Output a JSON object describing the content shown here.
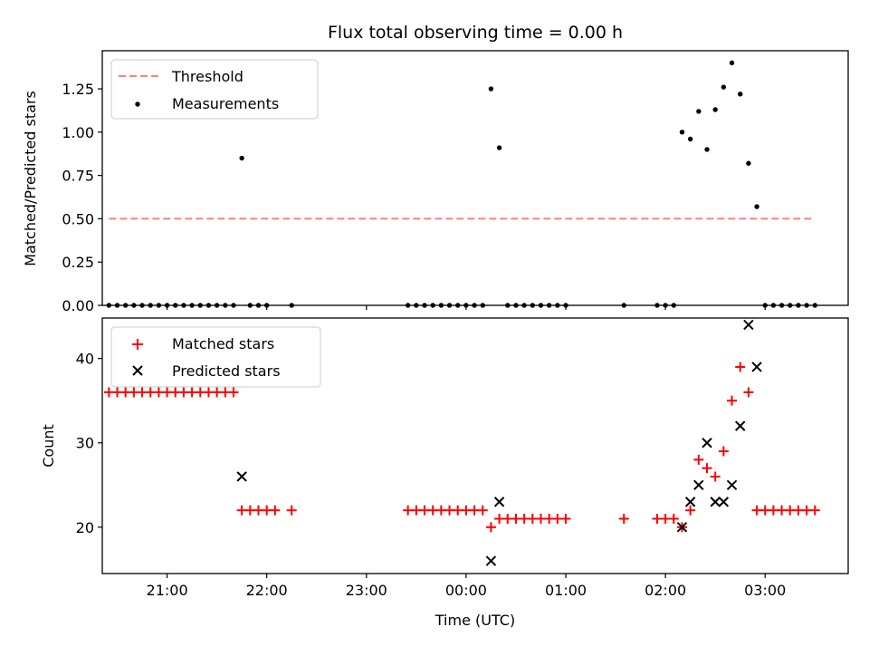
{
  "figure": {
    "title": "Flux total observing time = 0.00 h"
  },
  "chart_data": [
    {
      "type": "scatter",
      "panel": "top",
      "title": "Flux total observing time = 0.00 h",
      "xlabel": "",
      "ylabel": "Matched/Predicted stars",
      "xlim": [
        "20:21",
        "03:50"
      ],
      "ylim": [
        0,
        1.47
      ],
      "x_ticks": [
        "21:00",
        "22:00",
        "23:00",
        "00:00",
        "01:00",
        "02:00",
        "03:00"
      ],
      "x_ticklabels_shown": false,
      "y_ticks": [
        0.0,
        0.25,
        0.5,
        0.75,
        1.0,
        1.25
      ],
      "y_ticklabels": [
        "0.00",
        "0.25",
        "0.50",
        "0.75",
        "1.00",
        "1.25"
      ],
      "grid": false,
      "legend": "top-left",
      "threshold": {
        "name": "Threshold",
        "y": 0.5,
        "x_start": "20:25",
        "x_end": "03:30",
        "color": "#ff7f7f",
        "style": "dashed"
      },
      "series": [
        {
          "name": "Measurements",
          "marker": "dot",
          "color": "#000000",
          "points": [
            [
              "20:25",
              0
            ],
            [
              "20:30",
              0
            ],
            [
              "20:35",
              0
            ],
            [
              "20:40",
              0
            ],
            [
              "20:45",
              0
            ],
            [
              "20:50",
              0
            ],
            [
              "20:55",
              0
            ],
            [
              "21:00",
              0
            ],
            [
              "21:05",
              0
            ],
            [
              "21:10",
              0
            ],
            [
              "21:15",
              0
            ],
            [
              "21:20",
              0
            ],
            [
              "21:25",
              0
            ],
            [
              "21:30",
              0
            ],
            [
              "21:35",
              0
            ],
            [
              "21:40",
              0
            ],
            [
              "21:45",
              0.85
            ],
            [
              "21:50",
              0
            ],
            [
              "21:55",
              0
            ],
            [
              "22:00",
              0
            ],
            [
              "22:15",
              0
            ],
            [
              "23:25",
              0
            ],
            [
              "23:30",
              0
            ],
            [
              "23:35",
              0
            ],
            [
              "23:40",
              0
            ],
            [
              "23:45",
              0
            ],
            [
              "23:50",
              0
            ],
            [
              "23:55",
              0
            ],
            [
              "00:00",
              0
            ],
            [
              "00:05",
              0
            ],
            [
              "00:10",
              0
            ],
            [
              "00:15",
              1.25
            ],
            [
              "00:20",
              0.91
            ],
            [
              "00:25",
              0
            ],
            [
              "00:30",
              0
            ],
            [
              "00:35",
              0
            ],
            [
              "00:40",
              0
            ],
            [
              "00:45",
              0
            ],
            [
              "00:50",
              0
            ],
            [
              "00:55",
              0
            ],
            [
              "01:00",
              0
            ],
            [
              "01:35",
              0
            ],
            [
              "01:55",
              0
            ],
            [
              "02:00",
              0
            ],
            [
              "02:05",
              0
            ],
            [
              "02:10",
              1.0
            ],
            [
              "02:15",
              0.96
            ],
            [
              "02:20",
              1.12
            ],
            [
              "02:25",
              0.9
            ],
            [
              "02:30",
              1.13
            ],
            [
              "02:35",
              1.26
            ],
            [
              "02:40",
              1.4
            ],
            [
              "02:45",
              1.22
            ],
            [
              "02:50",
              0.82
            ],
            [
              "02:55",
              0.57
            ],
            [
              "03:00",
              0
            ],
            [
              "03:05",
              0
            ],
            [
              "03:10",
              0
            ],
            [
              "03:15",
              0
            ],
            [
              "03:20",
              0
            ],
            [
              "03:25",
              0
            ],
            [
              "03:30",
              0
            ]
          ]
        }
      ]
    },
    {
      "type": "scatter",
      "panel": "bottom",
      "title": "",
      "xlabel": "Time (UTC)",
      "ylabel": "Count",
      "xlim": [
        "20:21",
        "03:50"
      ],
      "ylim": [
        14.5,
        44.8
      ],
      "x_ticks": [
        "21:00",
        "22:00",
        "23:00",
        "00:00",
        "01:00",
        "02:00",
        "03:00"
      ],
      "x_ticklabels": [
        "21:00",
        "22:00",
        "23:00",
        "00:00",
        "01:00",
        "02:00",
        "03:00"
      ],
      "y_ticks": [
        20,
        30,
        40
      ],
      "y_ticklabels": [
        "20",
        "30",
        "40"
      ],
      "grid": false,
      "legend": "top-left",
      "series": [
        {
          "name": "Matched stars",
          "marker": "plus",
          "color": "#ff0000",
          "points": [
            [
              "20:25",
              36
            ],
            [
              "20:30",
              36
            ],
            [
              "20:35",
              36
            ],
            [
              "20:40",
              36
            ],
            [
              "20:45",
              36
            ],
            [
              "20:50",
              36
            ],
            [
              "20:55",
              36
            ],
            [
              "21:00",
              36
            ],
            [
              "21:05",
              36
            ],
            [
              "21:10",
              36
            ],
            [
              "21:15",
              36
            ],
            [
              "21:20",
              36
            ],
            [
              "21:25",
              36
            ],
            [
              "21:30",
              36
            ],
            [
              "21:35",
              36
            ],
            [
              "21:40",
              36
            ],
            [
              "21:45",
              22
            ],
            [
              "21:50",
              22
            ],
            [
              "21:55",
              22
            ],
            [
              "22:00",
              22
            ],
            [
              "22:05",
              22
            ],
            [
              "22:15",
              22
            ],
            [
              "23:25",
              22
            ],
            [
              "23:30",
              22
            ],
            [
              "23:35",
              22
            ],
            [
              "23:40",
              22
            ],
            [
              "23:45",
              22
            ],
            [
              "23:50",
              22
            ],
            [
              "23:55",
              22
            ],
            [
              "00:00",
              22
            ],
            [
              "00:05",
              22
            ],
            [
              "00:10",
              22
            ],
            [
              "00:15",
              20
            ],
            [
              "00:20",
              21
            ],
            [
              "00:25",
              21
            ],
            [
              "00:30",
              21
            ],
            [
              "00:35",
              21
            ],
            [
              "00:40",
              21
            ],
            [
              "00:45",
              21
            ],
            [
              "00:50",
              21
            ],
            [
              "00:55",
              21
            ],
            [
              "01:00",
              21
            ],
            [
              "01:35",
              21
            ],
            [
              "01:55",
              21
            ],
            [
              "02:00",
              21
            ],
            [
              "02:05",
              21
            ],
            [
              "02:10",
              20
            ],
            [
              "02:15",
              22
            ],
            [
              "02:20",
              28
            ],
            [
              "02:25",
              27
            ],
            [
              "02:30",
              26
            ],
            [
              "02:35",
              29
            ],
            [
              "02:40",
              35
            ],
            [
              "02:45",
              39
            ],
            [
              "02:50",
              36
            ],
            [
              "02:55",
              22
            ],
            [
              "03:00",
              22
            ],
            [
              "03:05",
              22
            ],
            [
              "03:10",
              22
            ],
            [
              "03:15",
              22
            ],
            [
              "03:20",
              22
            ],
            [
              "03:25",
              22
            ],
            [
              "03:30",
              22
            ]
          ]
        },
        {
          "name": "Predicted stars",
          "marker": "cross",
          "color": "#000000",
          "points": [
            [
              "21:45",
              26
            ],
            [
              "00:15",
              16
            ],
            [
              "00:20",
              23
            ],
            [
              "02:10",
              20
            ],
            [
              "02:15",
              23
            ],
            [
              "02:20",
              25
            ],
            [
              "02:25",
              30
            ],
            [
              "02:30",
              23
            ],
            [
              "02:35",
              23
            ],
            [
              "02:40",
              25
            ],
            [
              "02:45",
              32
            ],
            [
              "02:50",
              44
            ],
            [
              "02:55",
              39
            ]
          ]
        }
      ]
    }
  ]
}
